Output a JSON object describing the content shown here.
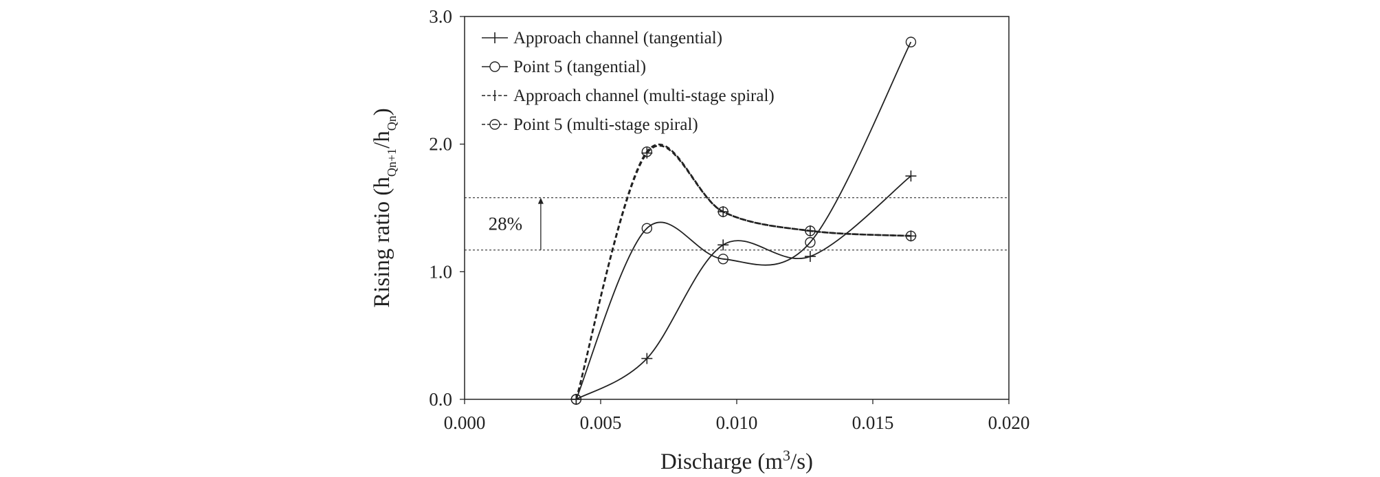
{
  "chart_data": {
    "type": "line",
    "title": "",
    "xlabel": {
      "base": "Discharge (m",
      "sup": "3",
      "tail": "/s)"
    },
    "ylabel": {
      "base": "Rising ratio (h",
      "sub1": "Qn+1",
      "mid": "/h",
      "sub2": "Qn",
      "tail": ")"
    },
    "xlim": [
      0.0,
      0.02
    ],
    "ylim": [
      0.0,
      3.0
    ],
    "xticks": [
      0.0,
      0.005,
      0.01,
      0.015,
      0.02
    ],
    "xtick_labels": [
      "0.000",
      "0.005",
      "0.010",
      "0.015",
      "0.020"
    ],
    "yticks": [
      0.0,
      1.0,
      2.0,
      3.0
    ],
    "ytick_labels": [
      "0.0",
      "1.0",
      "2.0",
      "3.0"
    ],
    "grid": false,
    "legend_position": "top-left",
    "series": [
      {
        "name": "Approach channel (tangential)",
        "line_style": "solid",
        "marker": "plus",
        "x": [
          0.0041,
          0.0067,
          0.0095,
          0.0127,
          0.0164
        ],
        "y": [
          0.0,
          0.32,
          1.21,
          1.12,
          1.75
        ]
      },
      {
        "name": "Point 5 (tangential)",
        "line_style": "solid",
        "marker": "circle",
        "x": [
          0.0041,
          0.0067,
          0.0095,
          0.0127,
          0.0164
        ],
        "y": [
          0.0,
          1.34,
          1.1,
          1.23,
          2.8
        ]
      },
      {
        "name": "Approach channel (multi-stage spiral)",
        "line_style": "dashed",
        "marker": "plus",
        "x": [
          0.0041,
          0.0067,
          0.0095,
          0.0127,
          0.0164
        ],
        "y": [
          0.0,
          1.93,
          1.47,
          1.32,
          1.28
        ]
      },
      {
        "name": "Point 5 (multi-stage spiral)",
        "line_style": "dashed",
        "marker": "circle",
        "x": [
          0.0041,
          0.0067,
          0.0095,
          0.0127,
          0.0164
        ],
        "y": [
          0.0,
          1.94,
          1.47,
          1.32,
          1.28
        ]
      }
    ],
    "reference_lines": [
      {
        "y": 1.58,
        "style": "dotted"
      },
      {
        "y": 1.17,
        "style": "dotted"
      }
    ],
    "annotation": {
      "text": "28%",
      "x_arrow": 0.0028,
      "y_from": 1.17,
      "y_to": 1.58,
      "x_text": 0.0015
    }
  }
}
